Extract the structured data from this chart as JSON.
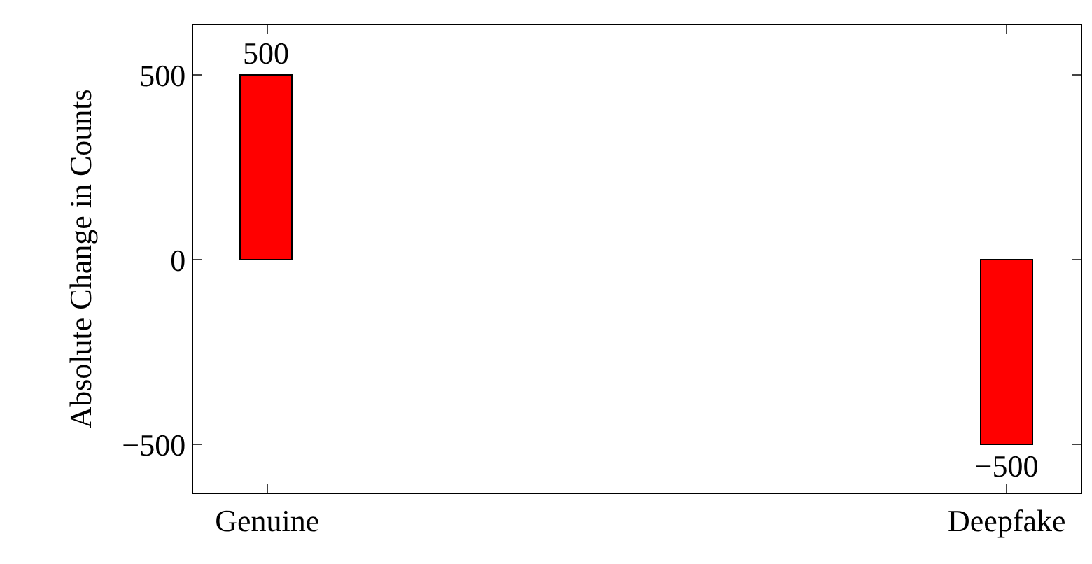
{
  "chart_data": {
    "type": "bar",
    "ylabel": "Absolute Change in Counts",
    "categories": [
      "Genuine",
      "Deepfake"
    ],
    "values": [
      500,
      -500
    ],
    "value_labels": [
      "500",
      "−500"
    ],
    "color": "#ff0000",
    "ylim": [
      -630,
      635
    ],
    "yticks": [
      {
        "value": -500,
        "label": "−500"
      },
      0,
      500
    ]
  }
}
